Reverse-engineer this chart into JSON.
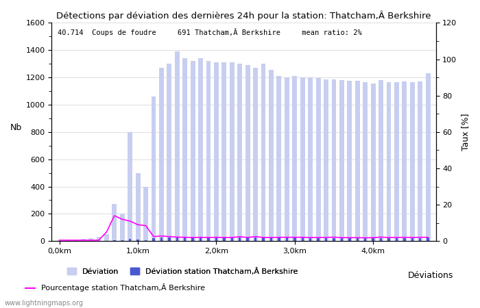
{
  "title": "Détections par déviation des dernières 24h pour la station: Thatcham,Â Berkshire",
  "annotation": "40.714  Coups de foudre     691 Thatcham,Â Berkshire     mean ratio: 2%",
  "ylabel_left": "Nb",
  "ylabel_right": "Taux [%]",
  "xlabel_right_label": "Déviations",
  "watermark": "www.lightningmaps.org",
  "ylim_left": [
    0,
    1600
  ],
  "ylim_right": [
    0,
    120
  ],
  "xtick_labels": [
    "0,0km",
    "1,0km",
    "2,0km",
    "3,0km",
    "4,0km"
  ],
  "xtick_positions": [
    0,
    10,
    20,
    30,
    40
  ],
  "ytick_left": [
    0,
    200,
    400,
    600,
    800,
    1000,
    1200,
    1400,
    1600
  ],
  "ytick_right": [
    0,
    20,
    40,
    60,
    80,
    100,
    120
  ],
  "bar_values": [
    5,
    8,
    10,
    15,
    20,
    30,
    50,
    270,
    200,
    800,
    500,
    400,
    1060,
    1270,
    1300,
    1390,
    1340,
    1320,
    1340,
    1320,
    1310,
    1310,
    1310,
    1300,
    1290,
    1270,
    1300,
    1255,
    1210,
    1200,
    1210,
    1200,
    1200,
    1195,
    1188,
    1185,
    1182,
    1178,
    1175,
    1165,
    1155,
    1180,
    1165,
    1168,
    1172,
    1168,
    1172,
    1230
  ],
  "station_bar_values": [
    0,
    0,
    0,
    0,
    0,
    0,
    1,
    5,
    4,
    15,
    10,
    8,
    22,
    26,
    28,
    31,
    29,
    28,
    29,
    28,
    28,
    27,
    27,
    26,
    26,
    25,
    26,
    25,
    24,
    24,
    24,
    24,
    23,
    23,
    23,
    23,
    22,
    22,
    22,
    21,
    21,
    22,
    22,
    22,
    23,
    22,
    23,
    25
  ],
  "pct_peaks": [
    0.5,
    0.5,
    0.5,
    0.5,
    0.5,
    0.5,
    5.0,
    14.0,
    12.0,
    11.0,
    9.0,
    8.5,
    2.5,
    2.8,
    2.5,
    2.2,
    2.1,
    2.0,
    2.1,
    2.0,
    2.1,
    2.0,
    2.0,
    2.4,
    2.0,
    2.5,
    2.0,
    2.0,
    2.1,
    2.1,
    2.1,
    2.1,
    2.0,
    2.0,
    2.0,
    2.2,
    1.9,
    1.9,
    1.9,
    1.8,
    1.9,
    2.2,
    2.0,
    2.0,
    2.1,
    2.0,
    2.1,
    2.1
  ],
  "bar_color_global": "#c8cef0",
  "bar_color_station": "#4858d0",
  "line_color_percentage": "#ff00ff",
  "bar_width": 0.6,
  "n_bars": 48,
  "legend_entries": [
    "Déviation",
    "Déviation station Thatcham,Â Berkshire",
    "Pourcentage station Thatcham,Â Berkshire"
  ]
}
